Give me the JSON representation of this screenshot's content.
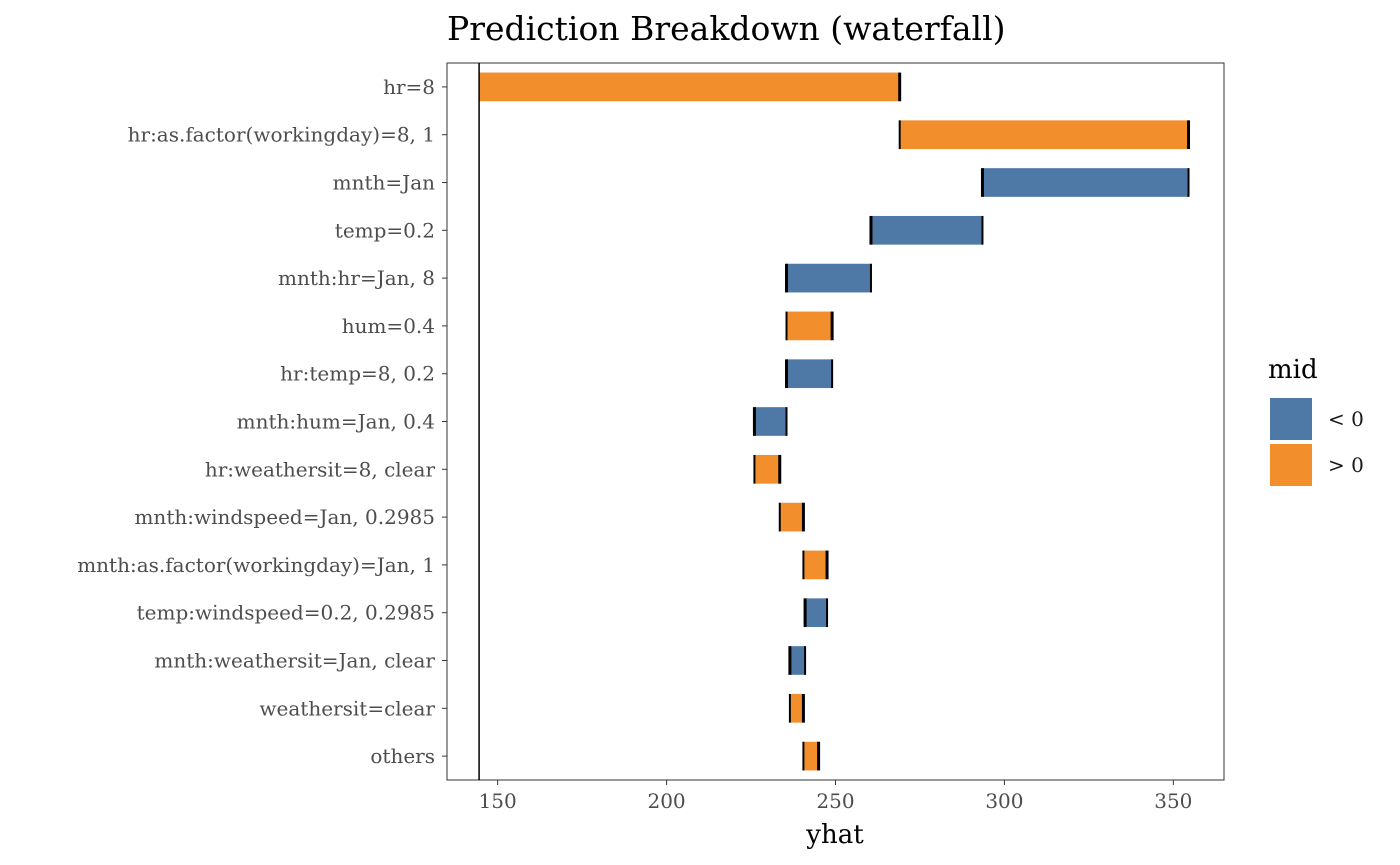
{
  "chart_data": {
    "type": "bar",
    "subtype": "waterfall",
    "orientation": "horizontal",
    "title": "Prediction Breakdown (waterfall)",
    "xlabel": "yhat",
    "ylabel": "",
    "xlim": [
      135,
      365
    ],
    "xticks": [
      150,
      200,
      250,
      300,
      350
    ],
    "intercept": 144.5,
    "grid": false,
    "legend": {
      "title": "mid",
      "placement": "right",
      "entries": [
        {
          "label": "< 0",
          "color": "#4E79A7"
        },
        {
          "label": "> 0",
          "color": "#F28E2B"
        }
      ]
    },
    "bars": [
      {
        "label": "hr=8",
        "start": 144.5,
        "end": 269.0,
        "sign": "positive"
      },
      {
        "label": "hr:as.factor(workingday)=8, 1",
        "start": 269.0,
        "end": 354.5,
        "sign": "positive"
      },
      {
        "label": "mnth=Jan",
        "start": 354.5,
        "end": 293.5,
        "sign": "negative"
      },
      {
        "label": "temp=0.2",
        "start": 293.5,
        "end": 260.5,
        "sign": "negative"
      },
      {
        "label": "mnth:hr=Jan, 8",
        "start": 260.5,
        "end": 235.5,
        "sign": "negative"
      },
      {
        "label": "hum=0.4",
        "start": 235.5,
        "end": 249.0,
        "sign": "positive"
      },
      {
        "label": "hr:temp=8, 0.2",
        "start": 249.0,
        "end": 235.5,
        "sign": "negative"
      },
      {
        "label": "mnth:hum=Jan, 0.4",
        "start": 235.5,
        "end": 226.0,
        "sign": "negative"
      },
      {
        "label": "hr:weathersit=8, clear",
        "start": 226.0,
        "end": 233.5,
        "sign": "positive"
      },
      {
        "label": "mnth:windspeed=Jan, 0.2985",
        "start": 233.5,
        "end": 240.5,
        "sign": "positive"
      },
      {
        "label": "mnth:as.factor(workingday)=Jan, 1",
        "start": 240.5,
        "end": 247.5,
        "sign": "positive"
      },
      {
        "label": "temp:windspeed=0.2, 0.2985",
        "start": 247.5,
        "end": 241.0,
        "sign": "negative"
      },
      {
        "label": "mnth:weathersit=Jan, clear",
        "start": 241.0,
        "end": 236.5,
        "sign": "negative"
      },
      {
        "label": "weathersit=clear",
        "start": 236.5,
        "end": 240.5,
        "sign": "positive"
      },
      {
        "label": "others",
        "start": 240.5,
        "end": 245.0,
        "sign": "positive"
      }
    ]
  }
}
